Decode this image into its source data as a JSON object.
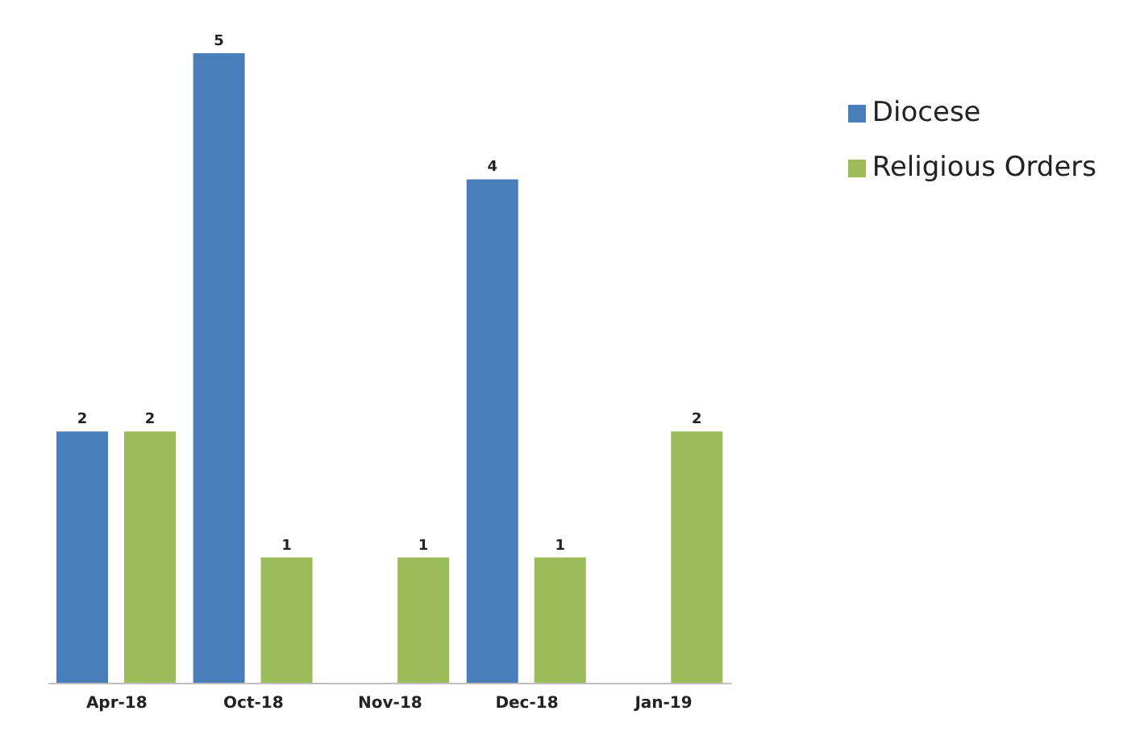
{
  "chart_data": {
    "type": "bar",
    "categories": [
      "Apr-18",
      "Oct-18",
      "Nov-18",
      "Dec-18",
      "Jan-19"
    ],
    "series": [
      {
        "name": "Diocese",
        "color": "#4a7ebb",
        "values": [
          2,
          5,
          null,
          4,
          null
        ]
      },
      {
        "name": "Religious Orders",
        "color": "#9bbb59",
        "values": [
          2,
          1,
          1,
          1,
          2
        ]
      }
    ],
    "data_labels": true,
    "legend": "top right",
    "grid": false
  }
}
